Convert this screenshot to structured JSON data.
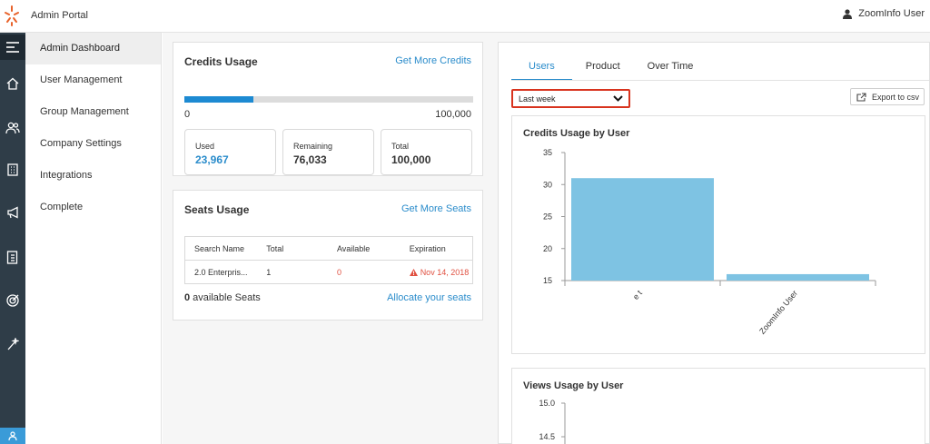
{
  "header": {
    "app_title": "Admin Portal",
    "user_name": "ZoomInfo User"
  },
  "rail": {
    "icons": [
      "menu-icon",
      "home-icon",
      "users-icon",
      "building-icon",
      "megaphone-icon",
      "document-list-icon",
      "target-icon",
      "magic-wand-icon",
      "user-badge-icon"
    ]
  },
  "nav": {
    "items": [
      {
        "label": "Admin Dashboard",
        "active": true
      },
      {
        "label": "User Management"
      },
      {
        "label": "Group Management"
      },
      {
        "label": "Company Settings"
      },
      {
        "label": "Integrations"
      },
      {
        "label": "Complete"
      }
    ]
  },
  "credits": {
    "title": "Credits Usage",
    "link": "Get More Credits",
    "progress_fraction": 0.24,
    "min_label": "0",
    "max_label": "100,000",
    "used_label": "Used",
    "used_value": "23,967",
    "remaining_label": "Remaining",
    "remaining_value": "76,033",
    "total_label": "Total",
    "total_value": "100,000"
  },
  "seats": {
    "title": "Seats Usage",
    "link": "Get More Seats",
    "columns": [
      "Search Name",
      "Total",
      "Available",
      "Expiration"
    ],
    "row": {
      "name": "2.0 Enterpris...",
      "total": "1",
      "available": "0",
      "expiration": "Nov 14, 2018"
    },
    "footer_count": "0",
    "footer_text": " available Seats",
    "allocate_link": "Allocate your seats"
  },
  "panel": {
    "tabs": [
      "Users",
      "Product",
      "Over Time"
    ],
    "active_tab": "Users",
    "range_select": "Last week",
    "export_label": "Export to csv"
  },
  "colors": {
    "accent": "#2a8ccb",
    "bar": "#7ec3e3",
    "alert": "#e05040",
    "highlight": "#d8331e"
  },
  "chart_data": [
    {
      "type": "bar",
      "title": "Credits Usage by User",
      "categories": [
        "e t",
        "ZoomInfo User"
      ],
      "values": [
        31,
        16
      ],
      "ylim": [
        15,
        35
      ],
      "yticks": [
        15,
        20,
        25,
        30,
        35
      ]
    },
    {
      "type": "bar",
      "title": "Views Usage by User",
      "categories": [],
      "values": [],
      "yticks": [
        14.5,
        15.0
      ]
    }
  ]
}
